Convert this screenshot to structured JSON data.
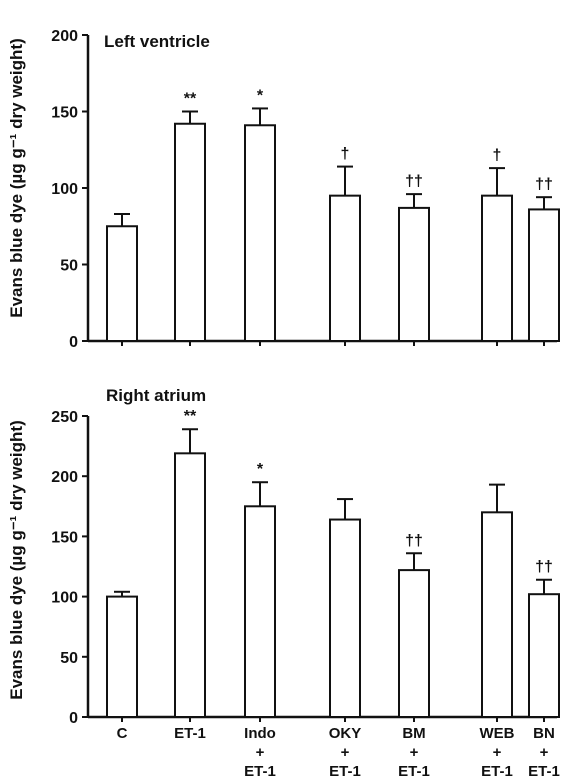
{
  "chart_data": [
    {
      "type": "bar",
      "title": "Left ventricle",
      "ylabel": "Evans blue dye (µg g⁻¹ dry weight)",
      "ylim": [
        0,
        200
      ],
      "yticks": [
        "0",
        "50",
        "100",
        "150",
        "200"
      ],
      "categories": [
        [
          "C"
        ],
        [
          "ET-1"
        ],
        [
          "Indo",
          "+",
          "ET-1"
        ],
        [
          "OKY",
          "+",
          "ET-1"
        ],
        [
          "BM",
          "+",
          "ET-1"
        ],
        [
          "WEB",
          "+",
          "ET-1"
        ],
        [
          "BN",
          "+",
          "ET-1"
        ]
      ],
      "values": [
        75,
        142,
        141,
        95,
        87,
        95,
        86
      ],
      "errors": [
        8,
        8,
        11,
        19,
        9,
        18,
        8
      ],
      "significance": [
        "",
        "**",
        "*",
        "†",
        "††",
        "†",
        "††"
      ]
    },
    {
      "type": "bar",
      "title": "Right atrium",
      "ylabel": "Evans blue dye (µg g⁻¹ dry weight)",
      "ylim": [
        0,
        250
      ],
      "yticks": [
        "0",
        "50",
        "100",
        "150",
        "200",
        "250"
      ],
      "categories": [
        [
          "C"
        ],
        [
          "ET-1"
        ],
        [
          "Indo",
          "+",
          "ET-1"
        ],
        [
          "OKY",
          "+",
          "ET-1"
        ],
        [
          "BM",
          "+",
          "ET-1"
        ],
        [
          "WEB",
          "+",
          "ET-1"
        ],
        [
          "BN",
          "+",
          "ET-1"
        ]
      ],
      "values": [
        100,
        219,
        175,
        164,
        122,
        170,
        102
      ],
      "errors": [
        4,
        20,
        20,
        17,
        14,
        23,
        12
      ],
      "significance": [
        "",
        "**",
        "*",
        "",
        "††",
        "",
        "††"
      ]
    }
  ]
}
